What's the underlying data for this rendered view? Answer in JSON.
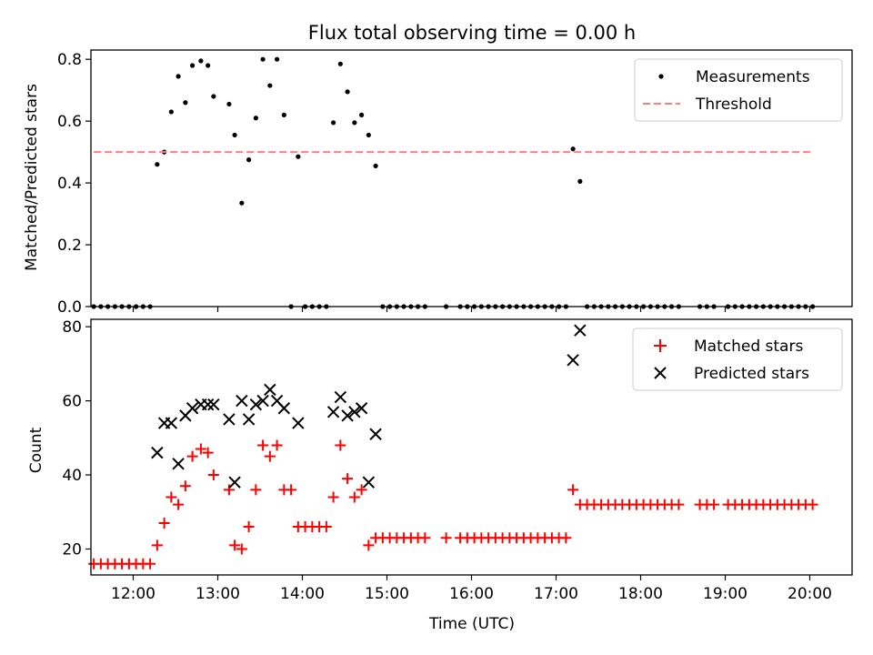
{
  "chart_data": [
    {
      "type": "scatter",
      "title": "Flux total observing time = 0.00 h",
      "xlabel": "",
      "ylabel": "Matched/Predicted stars",
      "xlim": [
        "11:30",
        "20:30"
      ],
      "ylim": [
        0,
        0.83
      ],
      "xticks": [
        "12:00",
        "13:00",
        "14:00",
        "15:00",
        "16:00",
        "17:00",
        "18:00",
        "19:00",
        "20:00"
      ],
      "yticks": [
        "0.0",
        "0.2",
        "0.4",
        "0.6",
        "0.8"
      ],
      "legend_position": "top-right",
      "grid": false,
      "series": [
        {
          "name": "Measurements",
          "marker": "dot",
          "color": "#000000",
          "points": [
            [
              "11:32",
              0
            ],
            [
              "11:37",
              0
            ],
            [
              "11:42",
              0
            ],
            [
              "11:47",
              0
            ],
            [
              "11:52",
              0
            ],
            [
              "11:57",
              0
            ],
            [
              "12:02",
              0
            ],
            [
              "12:07",
              0
            ],
            [
              "12:12",
              0
            ],
            [
              "12:17",
              0.46
            ],
            [
              "12:22",
              0.5
            ],
            [
              "12:27",
              0.63
            ],
            [
              "12:32",
              0.745
            ],
            [
              "12:37",
              0.66
            ],
            [
              "12:42",
              0.78
            ],
            [
              "12:48",
              0.795
            ],
            [
              "12:53",
              0.78
            ],
            [
              "12:57",
              0.68
            ],
            [
              "13:08",
              0.655
            ],
            [
              "13:12",
              0.555
            ],
            [
              "13:17",
              0.335
            ],
            [
              "13:22",
              0.475
            ],
            [
              "13:27",
              0.61
            ],
            [
              "13:32",
              0.8
            ],
            [
              "13:37",
              0.715
            ],
            [
              "13:42",
              0.8
            ],
            [
              "13:47",
              0.62
            ],
            [
              "13:52",
              0
            ],
            [
              "13:57",
              0.485
            ],
            [
              "14:02",
              0
            ],
            [
              "14:07",
              0
            ],
            [
              "14:12",
              0
            ],
            [
              "14:17",
              0
            ],
            [
              "14:22",
              0.595
            ],
            [
              "14:27",
              0.785
            ],
            [
              "14:32",
              0.695
            ],
            [
              "14:37",
              0.595
            ],
            [
              "14:42",
              0.62
            ],
            [
              "14:47",
              0.555
            ],
            [
              "14:52",
              0.455
            ],
            [
              "14:57",
              0
            ],
            [
              "15:02",
              0
            ],
            [
              "15:07",
              0
            ],
            [
              "15:12",
              0
            ],
            [
              "15:17",
              0
            ],
            [
              "15:22",
              0
            ],
            [
              "15:27",
              0
            ],
            [
              "15:42",
              0
            ],
            [
              "15:52",
              0
            ],
            [
              "15:57",
              0
            ],
            [
              "16:02",
              0
            ],
            [
              "16:07",
              0
            ],
            [
              "16:12",
              0
            ],
            [
              "16:17",
              0
            ],
            [
              "16:22",
              0
            ],
            [
              "16:27",
              0
            ],
            [
              "16:32",
              0
            ],
            [
              "16:37",
              0
            ],
            [
              "16:42",
              0
            ],
            [
              "16:47",
              0
            ],
            [
              "16:52",
              0
            ],
            [
              "16:57",
              0
            ],
            [
              "17:02",
              0
            ],
            [
              "17:07",
              0
            ],
            [
              "17:12",
              0.51
            ],
            [
              "17:17",
              0.405
            ],
            [
              "17:22",
              0
            ],
            [
              "17:27",
              0
            ],
            [
              "17:32",
              0
            ],
            [
              "17:37",
              0
            ],
            [
              "17:42",
              0
            ],
            [
              "17:47",
              0
            ],
            [
              "17:52",
              0
            ],
            [
              "17:57",
              0
            ],
            [
              "18:02",
              0
            ],
            [
              "18:07",
              0
            ],
            [
              "18:12",
              0
            ],
            [
              "18:17",
              0
            ],
            [
              "18:22",
              0
            ],
            [
              "18:27",
              0
            ],
            [
              "18:42",
              0
            ],
            [
              "18:47",
              0
            ],
            [
              "18:52",
              0
            ],
            [
              "19:02",
              0
            ],
            [
              "19:07",
              0
            ],
            [
              "19:12",
              0
            ],
            [
              "19:17",
              0
            ],
            [
              "19:22",
              0
            ],
            [
              "19:27",
              0
            ],
            [
              "19:32",
              0
            ],
            [
              "19:37",
              0
            ],
            [
              "19:42",
              0
            ],
            [
              "19:47",
              0
            ],
            [
              "19:52",
              0
            ],
            [
              "19:57",
              0
            ],
            [
              "20:02",
              0
            ]
          ]
        },
        {
          "name": "Threshold",
          "style": "dashed-line",
          "color": "#ff7f7f",
          "points": [
            [
              "11:32",
              0.5
            ],
            [
              "20:02",
              0.5
            ]
          ]
        }
      ]
    },
    {
      "type": "scatter",
      "title": "",
      "xlabel": "Time (UTC)",
      "ylabel": "Count",
      "xlim": [
        "11:30",
        "20:30"
      ],
      "ylim": [
        13,
        82
      ],
      "xticks": [
        "12:00",
        "13:00",
        "14:00",
        "15:00",
        "16:00",
        "17:00",
        "18:00",
        "19:00",
        "20:00"
      ],
      "yticks": [
        "20",
        "40",
        "60",
        "80"
      ],
      "legend_position": "top-right",
      "grid": false,
      "series": [
        {
          "name": "Matched stars",
          "marker": "plus",
          "color": "#ff0000",
          "points": [
            [
              "11:32",
              16
            ],
            [
              "11:37",
              16
            ],
            [
              "11:42",
              16
            ],
            [
              "11:47",
              16
            ],
            [
              "11:52",
              16
            ],
            [
              "11:57",
              16
            ],
            [
              "12:02",
              16
            ],
            [
              "12:07",
              16
            ],
            [
              "12:12",
              16
            ],
            [
              "12:17",
              21
            ],
            [
              "12:22",
              27
            ],
            [
              "12:27",
              34
            ],
            [
              "12:32",
              32
            ],
            [
              "12:37",
              37
            ],
            [
              "12:42",
              45
            ],
            [
              "12:48",
              47
            ],
            [
              "12:53",
              46
            ],
            [
              "12:57",
              40
            ],
            [
              "13:08",
              36
            ],
            [
              "13:12",
              21
            ],
            [
              "13:17",
              20
            ],
            [
              "13:22",
              26
            ],
            [
              "13:27",
              36
            ],
            [
              "13:32",
              48
            ],
            [
              "13:37",
              45
            ],
            [
              "13:42",
              48
            ],
            [
              "13:47",
              36
            ],
            [
              "13:52",
              36
            ],
            [
              "13:57",
              26
            ],
            [
              "14:02",
              26
            ],
            [
              "14:07",
              26
            ],
            [
              "14:12",
              26
            ],
            [
              "14:17",
              26
            ],
            [
              "14:22",
              34
            ],
            [
              "14:27",
              48
            ],
            [
              "14:32",
              39
            ],
            [
              "14:37",
              34
            ],
            [
              "14:42",
              36
            ],
            [
              "14:47",
              21
            ],
            [
              "14:52",
              23
            ],
            [
              "14:57",
              23
            ],
            [
              "15:02",
              23
            ],
            [
              "15:07",
              23
            ],
            [
              "15:12",
              23
            ],
            [
              "15:17",
              23
            ],
            [
              "15:22",
              23
            ],
            [
              "15:27",
              23
            ],
            [
              "15:42",
              23
            ],
            [
              "15:52",
              23
            ],
            [
              "15:57",
              23
            ],
            [
              "16:02",
              23
            ],
            [
              "16:07",
              23
            ],
            [
              "16:12",
              23
            ],
            [
              "16:17",
              23
            ],
            [
              "16:22",
              23
            ],
            [
              "16:27",
              23
            ],
            [
              "16:32",
              23
            ],
            [
              "16:37",
              23
            ],
            [
              "16:42",
              23
            ],
            [
              "16:47",
              23
            ],
            [
              "16:52",
              23
            ],
            [
              "16:57",
              23
            ],
            [
              "17:02",
              23
            ],
            [
              "17:07",
              23
            ],
            [
              "17:12",
              36
            ],
            [
              "17:17",
              32
            ],
            [
              "17:22",
              32
            ],
            [
              "17:27",
              32
            ],
            [
              "17:32",
              32
            ],
            [
              "17:37",
              32
            ],
            [
              "17:42",
              32
            ],
            [
              "17:47",
              32
            ],
            [
              "17:52",
              32
            ],
            [
              "17:57",
              32
            ],
            [
              "18:02",
              32
            ],
            [
              "18:07",
              32
            ],
            [
              "18:12",
              32
            ],
            [
              "18:17",
              32
            ],
            [
              "18:22",
              32
            ],
            [
              "18:27",
              32
            ],
            [
              "18:42",
              32
            ],
            [
              "18:47",
              32
            ],
            [
              "18:52",
              32
            ],
            [
              "19:02",
              32
            ],
            [
              "19:07",
              32
            ],
            [
              "19:12",
              32
            ],
            [
              "19:17",
              32
            ],
            [
              "19:22",
              32
            ],
            [
              "19:27",
              32
            ],
            [
              "19:32",
              32
            ],
            [
              "19:37",
              32
            ],
            [
              "19:42",
              32
            ],
            [
              "19:47",
              32
            ],
            [
              "19:52",
              32
            ],
            [
              "19:57",
              32
            ],
            [
              "20:02",
              32
            ]
          ]
        },
        {
          "name": "Predicted stars",
          "marker": "x",
          "color": "#000000",
          "points": [
            [
              "12:17",
              46
            ],
            [
              "12:22",
              54
            ],
            [
              "12:27",
              54
            ],
            [
              "12:32",
              43
            ],
            [
              "12:37",
              56
            ],
            [
              "12:42",
              58
            ],
            [
              "12:48",
              59
            ],
            [
              "12:53",
              59
            ],
            [
              "12:57",
              59
            ],
            [
              "13:08",
              55
            ],
            [
              "13:12",
              38
            ],
            [
              "13:17",
              60
            ],
            [
              "13:22",
              55
            ],
            [
              "13:27",
              59
            ],
            [
              "13:32",
              60
            ],
            [
              "13:37",
              63
            ],
            [
              "13:42",
              60
            ],
            [
              "13:47",
              58
            ],
            [
              "13:57",
              54
            ],
            [
              "14:22",
              57
            ],
            [
              "14:27",
              61
            ],
            [
              "14:32",
              56
            ],
            [
              "14:37",
              57
            ],
            [
              "14:42",
              58
            ],
            [
              "14:47",
              38
            ],
            [
              "14:52",
              51
            ],
            [
              "17:12",
              71
            ],
            [
              "17:17",
              79
            ]
          ]
        }
      ]
    }
  ]
}
